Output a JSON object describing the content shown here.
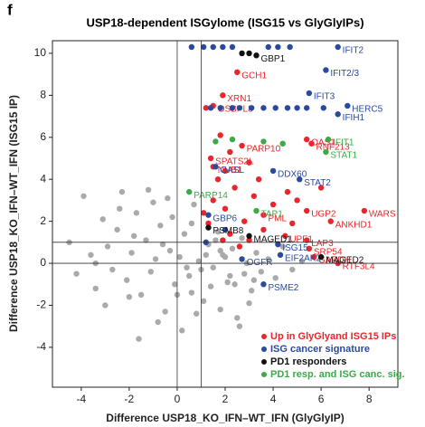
{
  "panel_label": "f",
  "chart_data": {
    "type": "scatter",
    "title": "USP18-dependent ISGylome (ISG15 vs GlyGlyIPs)",
    "x_label": "Difference USP18_KO_IFN–WT_IFN (GlyGlyIP)",
    "y_label": "Difference USP18_KO_IFN–WT_IFN (ISG15 IP)",
    "xlim": [
      -5.2,
      9.2
    ],
    "ylim": [
      -5.9,
      10.6
    ],
    "xticks": [
      -4,
      -2,
      0,
      2,
      4,
      6,
      8
    ],
    "yticks": [
      -4,
      -2,
      0,
      2,
      4,
      6,
      8,
      10
    ],
    "reference_lines": {
      "x": [
        0,
        1
      ],
      "y": [
        0,
        1
      ]
    },
    "legend": "lower right",
    "series": [
      {
        "color": "#aaaaaa",
        "x": [
          -4.5,
          -4.2,
          -3.9,
          -3.6,
          -3.4,
          -3.1,
          -2.9,
          -2.7,
          -2.5,
          -2.3,
          -2.1,
          -1.9,
          -1.7,
          -1.5,
          -1.3,
          -1.1,
          -0.9,
          -0.7,
          -0.5,
          -0.3,
          -0.1,
          0.1,
          0.3,
          0.5,
          0.7,
          0.9,
          1.1,
          1.3,
          1.5,
          1.7,
          1.9,
          2.1,
          2.3,
          2.5,
          2.7,
          2.9,
          3.1,
          3.3,
          3.5,
          3.8,
          4.1,
          4.4,
          4.8,
          5.2,
          -3.0,
          -2.0,
          -1.0,
          -0.4,
          0.2,
          0.6,
          1.0,
          1.4,
          1.8,
          2.2,
          2.6,
          3.0,
          -1.6,
          -0.8,
          0.0,
          0.8,
          1.6,
          2.4,
          3.2,
          -2.4,
          -1.2,
          0.4,
          1.2,
          2.0,
          -3.4,
          -1.8,
          -0.6,
          0.6,
          -0.2,
          1.8,
          2.8
        ],
        "y": [
          1.0,
          -0.5,
          3.2,
          0.4,
          -1.2,
          2.1,
          0.8,
          -0.3,
          1.6,
          3.4,
          -0.8,
          0.5,
          2.4,
          -1.5,
          1.1,
          -0.4,
          0.2,
          1.8,
          -2.3,
          0.6,
          -1.0,
          0.3,
          1.4,
          -0.6,
          2.8,
          0.1,
          -1.8,
          0.9,
          -0.2,
          1.5,
          0.4,
          -0.9,
          0.7,
          -2.6,
          1.2,
          0.0,
          -1.3,
          0.5,
          -0.4,
          0.2,
          -0.7,
          0.8,
          -0.3,
          0.1,
          -2.0,
          -1.6,
          2.9,
          3.1,
          -3.2,
          1.9,
          -0.3,
          -1.1,
          -2.2,
          -0.6,
          -3.0,
          -1.9,
          -3.6,
          -2.8,
          -1.5,
          -2.4,
          1.1,
          -1.0,
          -0.8,
          2.6,
          3.5,
          -0.2,
          0.4,
          0.3,
          0.0,
          1.3,
          0.9,
          -1.4,
          2.2,
          0.6,
          -0.5
        ]
      },
      {
        "name": "Up in GlyGlyand ISG15 IPs",
        "color": "#e8262b",
        "x": [
          2.5,
          1.9,
          1.5,
          5.4,
          5.6,
          1.4,
          1.5,
          2.7,
          7.8,
          5.4,
          6.4,
          5.4,
          5.5,
          5.7,
          6.7,
          4.5,
          3.6,
          1.2,
          1.8,
          2.2,
          3.0,
          1.7,
          2.4,
          3.2,
          1.5,
          2.0,
          2.8,
          3.6,
          1.3,
          2.2,
          3.0,
          4.0,
          4.6,
          5.0,
          1.9,
          2.6,
          4.8,
          6.0,
          1.1,
          3.4,
          2.0
        ],
        "y": [
          9.1,
          8.0,
          7.5,
          5.9,
          5.7,
          5.0,
          4.6,
          5.6,
          2.5,
          2.5,
          2.0,
          1.1,
          0.7,
          0.3,
          0.0,
          1.3,
          2.3,
          7.4,
          6.1,
          5.3,
          4.8,
          4.0,
          3.6,
          3.2,
          3.0,
          2.6,
          2.0,
          1.6,
          1.9,
          1.4,
          1.1,
          2.8,
          3.4,
          3.0,
          1.1,
          0.8,
          1.9,
          3.6,
          2.4,
          4.0,
          4.4
        ],
        "labels": [
          "GCH1",
          "XRN1",
          "OSBPL8",
          "OAS1",
          "RNF213",
          "SPATS2L",
          "NUB1",
          "PARP10",
          "WARS",
          "UGP2",
          "ANKHD1",
          "LAP3",
          "SRP54",
          "GAPDH",
          "RTF3L4",
          "UPF1",
          "PML",
          null,
          null,
          null,
          null,
          null,
          null,
          null,
          null,
          null,
          null,
          null,
          null,
          null,
          null,
          null,
          null,
          null,
          null,
          null,
          null,
          null,
          null,
          null,
          null
        ]
      },
      {
        "name": "ISG cancer signature",
        "color": "#2a4a9e",
        "x": [
          6.7,
          6.2,
          5.5,
          7.1,
          6.7,
          1.6,
          4.0,
          5.1,
          1.3,
          4.2,
          4.3,
          2.7,
          3.6,
          0.6,
          1.1,
          1.5,
          1.9,
          2.3,
          3.8,
          4.2,
          4.7,
          1.4,
          1.8,
          2.3,
          2.6,
          3.1,
          3.6,
          4.1,
          4.6,
          5.0,
          5.4,
          6.1,
          1.2,
          2.0
        ],
        "y": [
          10.3,
          9.2,
          8.1,
          7.5,
          7.1,
          4.6,
          4.4,
          4.0,
          2.3,
          0.9,
          0.4,
          0.2,
          -1.0,
          10.3,
          10.3,
          10.3,
          10.3,
          10.3,
          10.3,
          10.3,
          10.3,
          7.4,
          7.4,
          7.4,
          7.4,
          7.4,
          7.4,
          7.4,
          7.4,
          7.4,
          7.4,
          7.4,
          1.0,
          1.6
        ],
        "labels": [
          "IFIT2",
          "IFIT2/3",
          "IFIT3",
          "HERC5",
          "IFIH1",
          "OASL",
          "DDX60",
          "STAT2",
          "GBP6",
          "ISG15",
          "EIF2AK2",
          "OGFR",
          "PSME2",
          null,
          null,
          null,
          null,
          null,
          null,
          null,
          null,
          null,
          null,
          null,
          null,
          null,
          null,
          null,
          null,
          null,
          null,
          null,
          null,
          null
        ]
      },
      {
        "name": "PD1 responders",
        "color": "#111111",
        "x": [
          3.3,
          2.7,
          3.0,
          3.0,
          6.0,
          1.3
        ],
        "y": [
          9.9,
          10.0,
          10.0,
          1.3,
          0.3,
          1.7
        ],
        "labels": [
          "GBP1",
          null,
          null,
          "MAGED1",
          "MAGED2",
          "PSMB8"
        ]
      },
      {
        "name": "PD1 resp. and ISG canc. sig.",
        "color": "#3aab47",
        "x": [
          6.3,
          6.2,
          0.5,
          3.3,
          1.6,
          2.3,
          3.6,
          4.4
        ],
        "y": [
          5.9,
          5.3,
          3.4,
          2.5,
          5.8,
          5.9,
          5.8,
          5.7
        ],
        "labels": [
          "IFIT1",
          "STAT1",
          "PARP14",
          "TAP1",
          null,
          null,
          null,
          null
        ]
      }
    ]
  }
}
